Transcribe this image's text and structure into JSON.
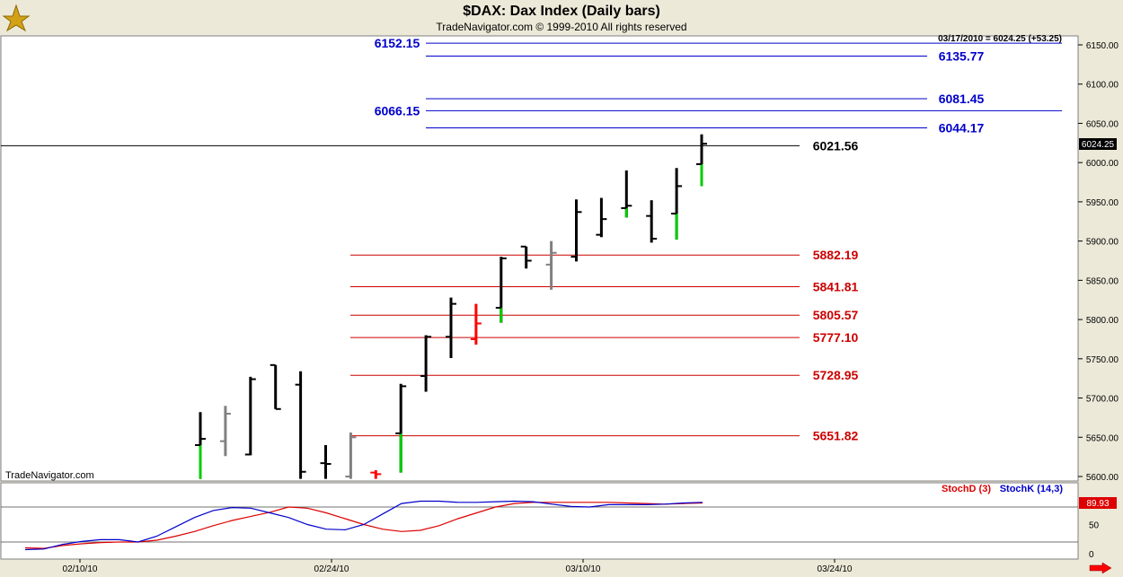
{
  "header": {
    "title": "$DAX:  Dax Index  (Daily bars)",
    "copyright": "TradeNavigator.com © 1999-2010 All rights reserved",
    "readout": "03/17/2010 = 6024.25 (+53.25)",
    "watermark": "TradeNavigator.com"
  },
  "colors": {
    "background": "#ffffff",
    "frame": "#ece9d8",
    "upper_levels": "#0000cc",
    "lower_levels": "#cc0000",
    "current_line": "#000000",
    "stoch_d": "#dd0000",
    "stoch_k": "#0000cc",
    "bar_default": "#000000",
    "bar_alt": "#808080",
    "bar_open_tick_down": "#00cc00"
  },
  "chart_data": [
    {
      "type": "bar",
      "subtype": "ohlc",
      "title": "$DAX:  Dax Index  (Daily bars)",
      "ylim": [
        5600,
        6175
      ],
      "y_ticks": [
        "5600.00",
        "5650.00",
        "5700.00",
        "5750.00",
        "5800.00",
        "5850.00",
        "5900.00",
        "5950.00",
        "6000.00",
        "6050.00",
        "6100.00",
        "6150.00"
      ],
      "x_ticks": [
        "02/10/10",
        "02/24/10",
        "03/10/10",
        "03/24/10"
      ],
      "last_price_label": "6024.25",
      "levels": [
        {
          "value": 6152.15,
          "label": "6152.15",
          "color": "#0000cc",
          "label_side": "left"
        },
        {
          "value": 6135.77,
          "label": "6135.77",
          "color": "#0000cc",
          "label_side": "right"
        },
        {
          "value": 6081.45,
          "label": "6081.45",
          "color": "#0000cc",
          "label_side": "right"
        },
        {
          "value": 6066.15,
          "label": "6066.15",
          "color": "#0000cc",
          "label_side": "left"
        },
        {
          "value": 6044.17,
          "label": "6044.17",
          "color": "#0000cc",
          "label_side": "right"
        },
        {
          "value": 6021.56,
          "label": "6021.56",
          "color": "#000000",
          "label_side": "right"
        },
        {
          "value": 5882.19,
          "label": "5882.19",
          "color": "#cc0000",
          "label_side": "right"
        },
        {
          "value": 5841.81,
          "label": "5841.81",
          "color": "#cc0000",
          "label_side": "right"
        },
        {
          "value": 5805.57,
          "label": "5805.57",
          "color": "#cc0000",
          "label_side": "right"
        },
        {
          "value": 5777.1,
          "label": "5777.10",
          "color": "#cc0000",
          "label_side": "right"
        },
        {
          "value": 5728.95,
          "label": "5728.95",
          "color": "#cc0000",
          "label_side": "right"
        },
        {
          "value": 5651.82,
          "label": "5651.82",
          "color": "#cc0000",
          "label_side": "right"
        }
      ],
      "bars": [
        {
          "open": 5640,
          "high": 5682,
          "low": 5597,
          "close": 5648,
          "color": "#000000",
          "low_tail": "#00cc00"
        },
        {
          "open": 5645,
          "high": 5690,
          "low": 5626,
          "close": 5680,
          "color": "#808080"
        },
        {
          "open": 5628,
          "high": 5727,
          "low": 5627,
          "close": 5724,
          "color": "#000000"
        },
        {
          "open": 5742,
          "high": 5742,
          "low": 5686,
          "close": 5686,
          "color": "#000000"
        },
        {
          "open": 5717,
          "high": 5734,
          "low": 5597,
          "close": 5606,
          "color": "#000000"
        },
        {
          "open": 5617,
          "high": 5640,
          "low": 5597,
          "close": 5616,
          "color": "#000000"
        },
        {
          "open": 5600,
          "high": 5656,
          "low": 5597,
          "close": 5650,
          "color": "#808080"
        },
        {
          "open": 5605,
          "high": 5608,
          "low": 5597,
          "close": 5603,
          "color": "#ff0000"
        },
        {
          "open": 5655,
          "high": 5718,
          "low": 5605,
          "close": 5715,
          "color": "#000000",
          "low_tail": "#00cc00"
        },
        {
          "open": 5728,
          "high": 5780,
          "low": 5708,
          "close": 5778,
          "color": "#000000"
        },
        {
          "open": 5778,
          "high": 5828,
          "low": 5751,
          "close": 5820,
          "color": "#000000"
        },
        {
          "open": 5775,
          "high": 5820,
          "low": 5768,
          "close": 5795,
          "color": "#ff0000"
        },
        {
          "open": 5815,
          "high": 5880,
          "low": 5796,
          "close": 5878,
          "color": "#000000",
          "low_tail": "#00cc00"
        },
        {
          "open": 5893,
          "high": 5893,
          "low": 5865,
          "close": 5875,
          "color": "#000000"
        },
        {
          "open": 5870,
          "high": 5900,
          "low": 5838,
          "close": 5885,
          "color": "#808080"
        },
        {
          "open": 5880,
          "high": 5953,
          "low": 5874,
          "close": 5937,
          "color": "#000000"
        },
        {
          "open": 5908,
          "high": 5955,
          "low": 5905,
          "close": 5928,
          "color": "#000000"
        },
        {
          "open": 5942,
          "high": 5990,
          "low": 5930,
          "close": 5945,
          "color": "#000000",
          "low_tail": "#00cc00"
        },
        {
          "open": 5932,
          "high": 5952,
          "low": 5898,
          "close": 5903,
          "color": "#000000"
        },
        {
          "open": 5935,
          "high": 5993,
          "low": 5902,
          "close": 5970,
          "color": "#000000",
          "low_tail": "#00cc00"
        },
        {
          "open": 5998,
          "high": 6036,
          "low": 5970,
          "close": 6024,
          "color": "#000000",
          "low_tail": "#00cc00"
        }
      ]
    },
    {
      "type": "line",
      "title": "Stochastic",
      "ylim": [
        0,
        100
      ],
      "y_ticks": [
        "0",
        "50"
      ],
      "last_value_label": "89.93",
      "series": [
        {
          "name": "StochD (3)",
          "color": "#dd0000",
          "values": [
            10,
            9,
            14,
            17,
            19,
            20,
            20,
            23,
            30,
            38,
            48,
            57,
            64,
            71,
            80,
            78,
            70,
            60,
            50,
            42,
            38,
            40,
            48,
            60,
            70,
            80,
            86,
            88,
            88,
            88,
            88,
            88,
            87,
            86,
            85,
            86,
            87
          ]
        },
        {
          "name": "StochK (14,3)",
          "color": "#0000cc",
          "values": [
            7,
            8,
            16,
            21,
            24,
            24,
            20,
            30,
            46,
            62,
            74,
            79,
            78,
            70,
            62,
            50,
            42,
            41,
            50,
            68,
            86,
            90,
            90,
            88,
            88,
            89,
            90,
            89,
            85,
            81,
            80,
            84,
            84,
            84,
            85,
            87,
            88
          ]
        }
      ]
    }
  ]
}
